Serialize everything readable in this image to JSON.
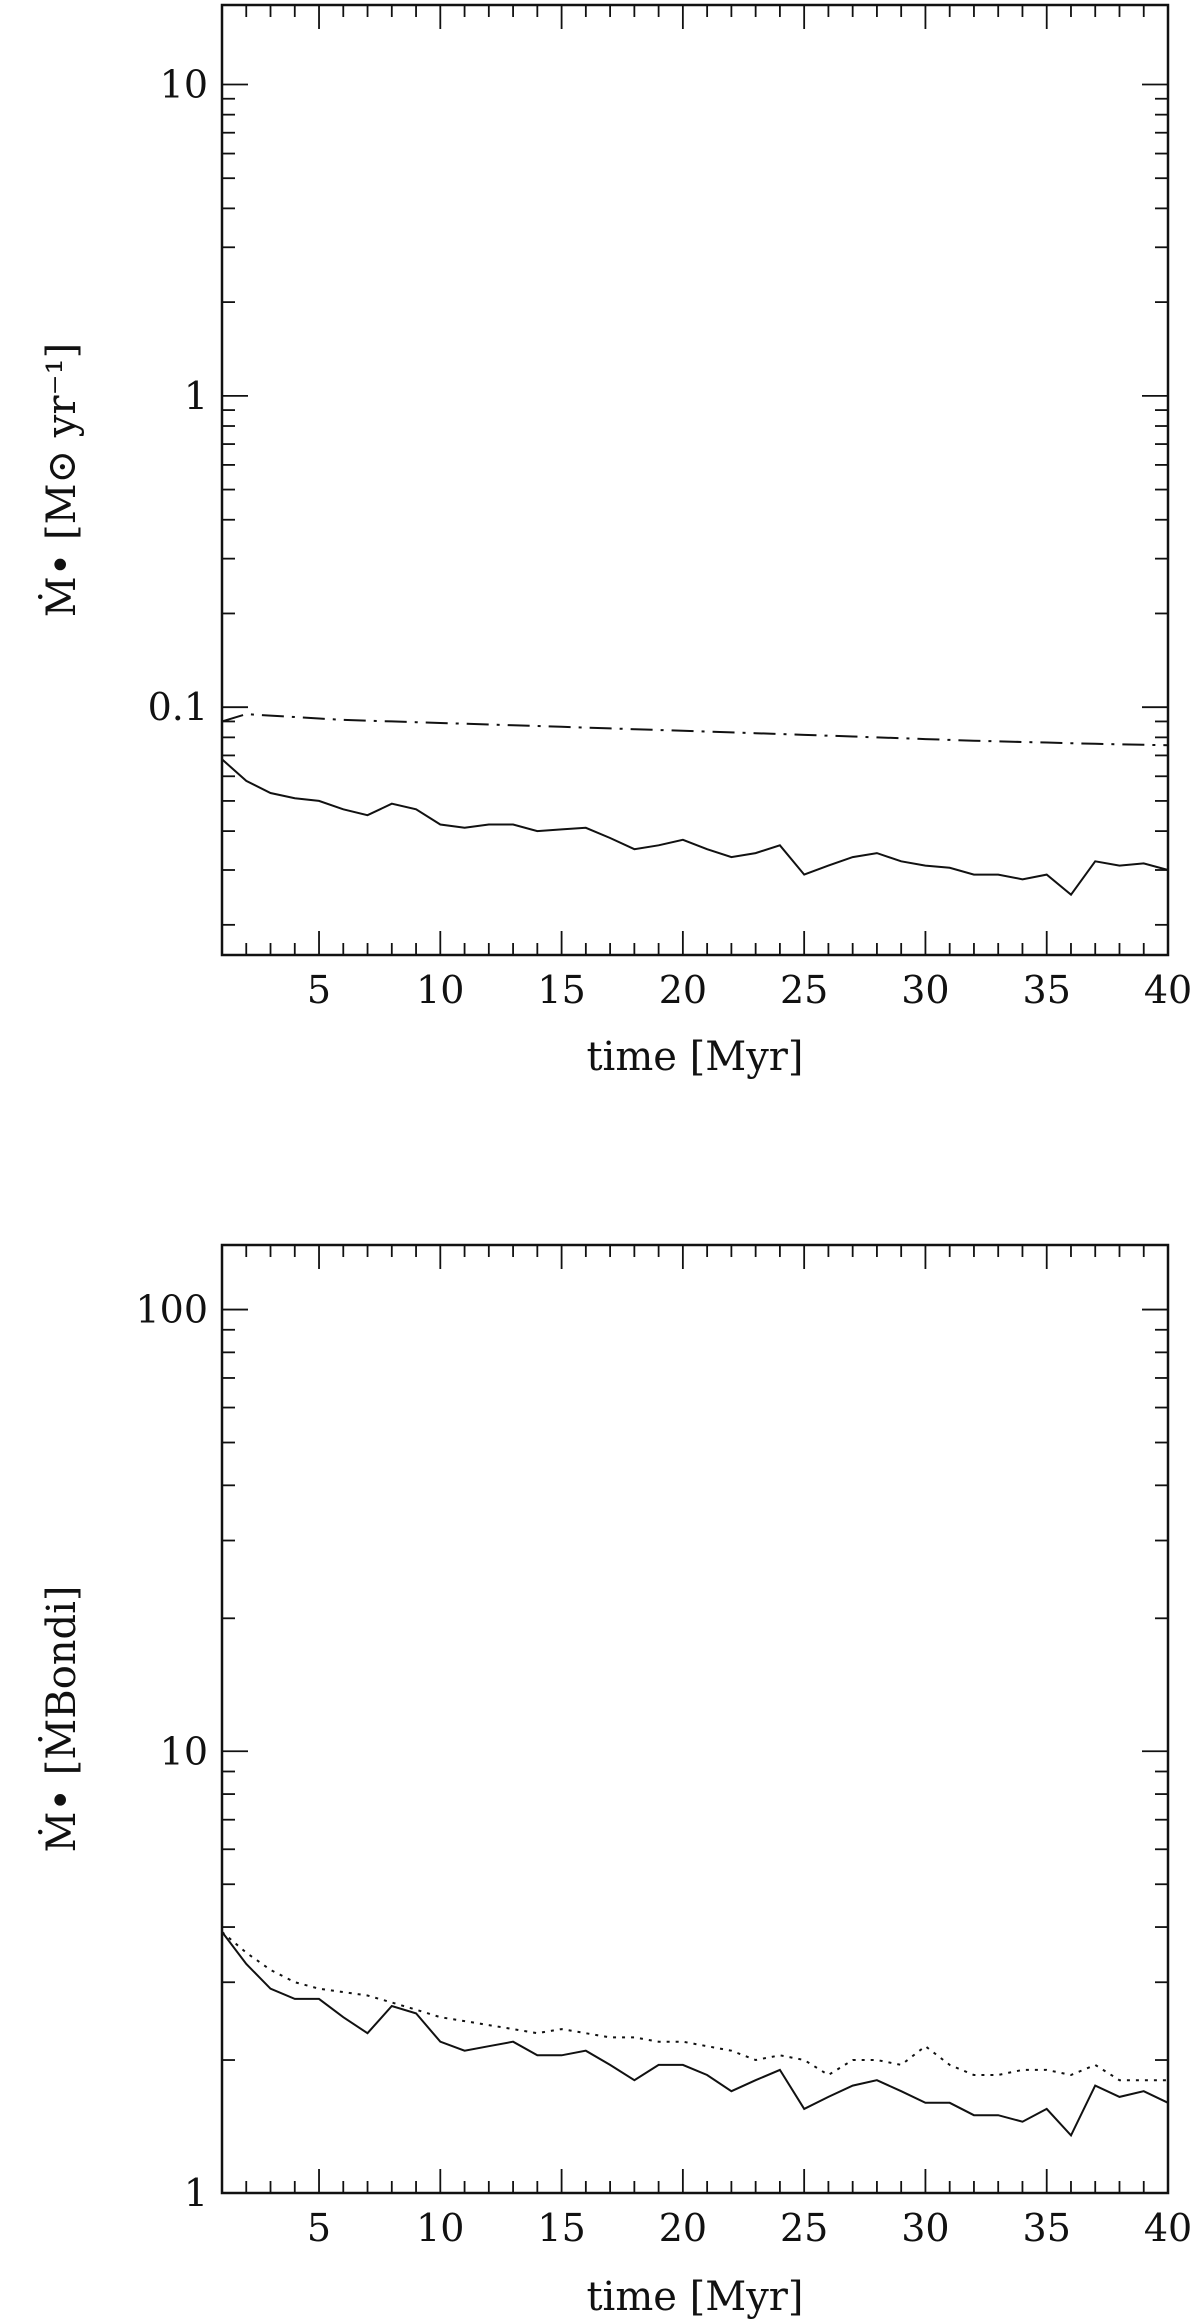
{
  "chart_data": [
    {
      "type": "line",
      "xlabel": "time   [Myr]",
      "ylabel": "Ṁ• [M⊙ yr⁻¹]",
      "yscale": "log",
      "xlim": [
        1,
        40
      ],
      "ylim": [
        0.016,
        18
      ],
      "x_ticks": [
        5,
        10,
        15,
        20,
        25,
        30,
        35,
        40
      ],
      "x_tick_labels": [
        "5",
        "10",
        "15",
        "20",
        "25",
        "30",
        "35",
        "40"
      ],
      "y_ticks": [
        0.1,
        1,
        10
      ],
      "y_tick_labels": [
        "0.1",
        "1",
        "10"
      ],
      "grid": false,
      "series": [
        {
          "style": "dash-dot",
          "x": [
            1,
            2,
            3,
            4,
            5,
            6,
            7,
            8,
            9,
            10,
            11,
            12,
            13,
            14,
            15,
            16,
            17,
            18,
            19,
            20,
            21,
            22,
            23,
            24,
            25,
            26,
            27,
            28,
            29,
            30,
            31,
            32,
            33,
            34,
            35,
            36,
            37,
            38,
            39,
            40
          ],
          "values": [
            0.09,
            0.095,
            0.094,
            0.093,
            0.092,
            0.091,
            0.0905,
            0.09,
            0.0895,
            0.089,
            0.0885,
            0.088,
            0.0875,
            0.087,
            0.0865,
            0.086,
            0.0855,
            0.085,
            0.0845,
            0.084,
            0.0835,
            0.083,
            0.0825,
            0.082,
            0.0815,
            0.081,
            0.0805,
            0.08,
            0.0795,
            0.079,
            0.0785,
            0.078,
            0.0777,
            0.0773,
            0.077,
            0.0766,
            0.0763,
            0.076,
            0.0757,
            0.0755
          ]
        },
        {
          "style": "solid",
          "x": [
            1,
            2,
            3,
            4,
            5,
            6,
            7,
            8,
            9,
            10,
            11,
            12,
            13,
            14,
            15,
            16,
            17,
            18,
            19,
            20,
            21,
            22,
            23,
            24,
            25,
            26,
            27,
            28,
            29,
            30,
            31,
            32,
            33,
            34,
            35,
            36,
            37,
            38,
            39,
            40
          ],
          "values": [
            0.068,
            0.058,
            0.053,
            0.051,
            0.05,
            0.047,
            0.045,
            0.049,
            0.047,
            0.042,
            0.041,
            0.042,
            0.042,
            0.04,
            0.0405,
            0.041,
            0.038,
            0.035,
            0.036,
            0.0375,
            0.035,
            0.033,
            0.034,
            0.036,
            0.029,
            0.031,
            0.033,
            0.034,
            0.032,
            0.031,
            0.0305,
            0.029,
            0.029,
            0.028,
            0.029,
            0.025,
            0.032,
            0.031,
            0.0315,
            0.03
          ]
        }
      ]
    },
    {
      "type": "line",
      "xlabel": "time   [Myr]",
      "ylabel": "Ṁ• [ṀBondi]",
      "yscale": "log",
      "xlim": [
        1,
        40
      ],
      "ylim": [
        1,
        140
      ],
      "x_ticks": [
        5,
        10,
        15,
        20,
        25,
        30,
        35,
        40
      ],
      "x_tick_labels": [
        "5",
        "10",
        "15",
        "20",
        "25",
        "30",
        "35",
        "40"
      ],
      "y_ticks": [
        1,
        10,
        100
      ],
      "y_tick_labels": [
        "1",
        "10",
        "100"
      ],
      "grid": false,
      "series": [
        {
          "style": "dotted",
          "x": [
            1,
            2,
            3,
            4,
            5,
            6,
            7,
            8,
            9,
            10,
            11,
            12,
            13,
            14,
            15,
            16,
            17,
            18,
            19,
            20,
            21,
            22,
            23,
            24,
            25,
            26,
            27,
            28,
            29,
            30,
            31,
            32,
            33,
            34,
            35,
            36,
            37,
            38,
            39,
            40
          ],
          "values": [
            3.9,
            3.5,
            3.2,
            3.0,
            2.9,
            2.85,
            2.8,
            2.7,
            2.6,
            2.5,
            2.45,
            2.4,
            2.35,
            2.3,
            2.35,
            2.3,
            2.25,
            2.25,
            2.2,
            2.2,
            2.15,
            2.1,
            2.0,
            2.05,
            2.0,
            1.85,
            2.0,
            2.0,
            1.95,
            2.15,
            1.95,
            1.85,
            1.85,
            1.9,
            1.9,
            1.85,
            1.95,
            1.8,
            1.8,
            1.8
          ]
        },
        {
          "style": "solid",
          "x": [
            1,
            2,
            3,
            4,
            5,
            6,
            7,
            8,
            9,
            10,
            11,
            12,
            13,
            14,
            15,
            16,
            17,
            18,
            19,
            20,
            21,
            22,
            23,
            24,
            25,
            26,
            27,
            28,
            29,
            30,
            31,
            32,
            33,
            34,
            35,
            36,
            37,
            38,
            39,
            40
          ],
          "values": [
            3.9,
            3.3,
            2.9,
            2.75,
            2.75,
            2.5,
            2.3,
            2.65,
            2.55,
            2.2,
            2.1,
            2.15,
            2.2,
            2.05,
            2.05,
            2.1,
            1.95,
            1.8,
            1.95,
            1.95,
            1.85,
            1.7,
            1.8,
            1.9,
            1.55,
            1.65,
            1.75,
            1.8,
            1.7,
            1.6,
            1.6,
            1.5,
            1.5,
            1.45,
            1.55,
            1.35,
            1.75,
            1.65,
            1.7,
            1.6
          ]
        }
      ]
    }
  ]
}
